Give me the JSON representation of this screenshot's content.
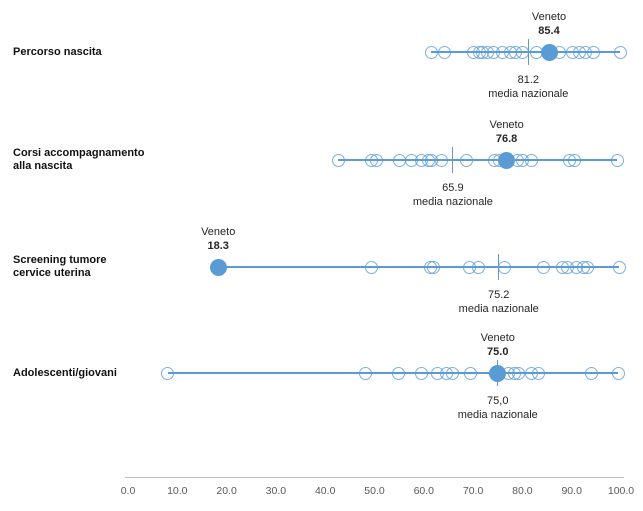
{
  "colors": {
    "accent": "#5B9BD5",
    "accent_soft": "rgba(91,155,213,0.8)",
    "axis_line": "#BFBFBF",
    "axis_text": "#595959",
    "text": "#262626"
  },
  "chart_data": {
    "type": "scatter",
    "subtype": "dot-strip-plot",
    "title": "",
    "xlabel": "",
    "ylabel": "",
    "axis": {
      "min": 0,
      "max": 100,
      "tick_labels": [
        "0.0",
        "10.0",
        "20.0",
        "30.0",
        "40.0",
        "50.0",
        "60.0",
        "70.0",
        "80.0",
        "90.0",
        "100.0"
      ]
    },
    "highlight_series": "Veneto",
    "mean_series": "media nazionale",
    "rows": [
      {
        "label_lines": [
          "Percorso nascita"
        ],
        "veneto_label": "Veneto",
        "veneto_value": 85.4,
        "veneto_display": "85.4",
        "media_value": 81.2,
        "media_display": "81.2",
        "media_label": "media nazionale",
        "points": [
          61.5,
          64.3,
          70.0,
          71.2,
          72.0,
          73.0,
          74.2,
          75.9,
          77.5,
          78.7,
          80.1,
          82.9,
          87.6,
          90.2,
          91.5,
          92.9,
          94.5,
          99.8
        ]
      },
      {
        "label_lines": [
          "Corsi accompagnamento",
          "alla nascita"
        ],
        "veneto_label": "Veneto",
        "veneto_value": 76.8,
        "veneto_display": "76.8",
        "media_value": 65.9,
        "media_display": "65.9",
        "media_label": "media nazionale",
        "points": [
          42.6,
          49.4,
          50.4,
          55.1,
          57.5,
          59.5,
          60.9,
          61.5,
          63.6,
          68.6,
          74.3,
          75.3,
          79.1,
          80.1,
          81.8,
          89.5,
          90.5,
          99.2
        ]
      },
      {
        "label_lines": [
          "Screening tumore",
          "cervice uterina"
        ],
        "veneto_label": "Veneto",
        "veneto_value": 18.3,
        "veneto_display": "18.3",
        "media_value": 75.2,
        "media_display": "75.2",
        "media_label": "media nazionale",
        "points": [
          49.4,
          61.3,
          61.9,
          69.2,
          71.0,
          76.3,
          84.2,
          88.2,
          89.2,
          90.9,
          92.3,
          93.3,
          99.6
        ]
      },
      {
        "label_lines": [
          "Adolescenti/giovani"
        ],
        "veneto_label": "Veneto",
        "veneto_value": 75.0,
        "veneto_display": "75.0",
        "media_value": 75.0,
        "media_display": "75,0",
        "media_label": "media nazionale",
        "points": [
          8.1,
          48.1,
          54.8,
          59.6,
          62.7,
          64.7,
          65.9,
          69.4,
          77.1,
          78.3,
          79.3,
          81.9,
          83.2,
          94.1,
          99.4
        ]
      }
    ]
  }
}
